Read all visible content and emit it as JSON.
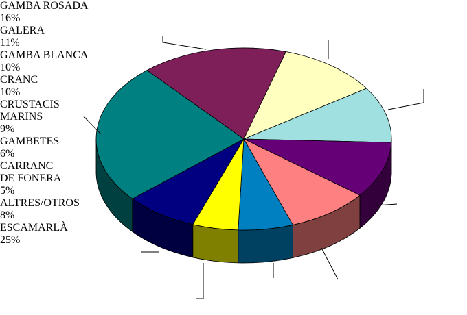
{
  "chart_data": {
    "type": "pie3d",
    "categories": [
      "GAMBA ROSADA",
      "GALERA",
      "GAMBA BLANCA",
      "CRANC",
      "CRUSTACIS MARINS",
      "GAMBETES",
      "CARRANC DE FONERA",
      "ALTRES/OTROS",
      "ESCAMARLÀ"
    ],
    "values": [
      16,
      11,
      10,
      10,
      9,
      6,
      5,
      8,
      25
    ],
    "value_labels": [
      "16%",
      "11%",
      "10%",
      "10%",
      "9%",
      "6%",
      "5%",
      "8%",
      "25%"
    ],
    "colors": [
      "#7f1f5a",
      "#ffffc0",
      "#a0e0e0",
      "#660077",
      "#ff8080",
      "#0080c0",
      "#ffff00",
      "#000080",
      "#008080"
    ]
  }
}
